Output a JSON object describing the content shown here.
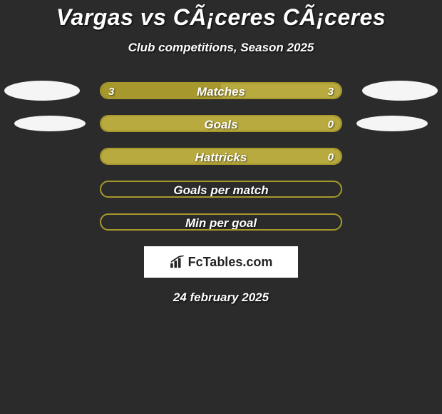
{
  "title": "Vargas vs CÃ¡ceres CÃ¡ceres",
  "title_fontsize": 32,
  "subtitle": "Club competitions, Season 2025",
  "subtitle_fontsize": 17,
  "date": "24 february 2025",
  "date_fontsize": 17,
  "logo_text": "FcTables.com",
  "logo_fontsize": 18,
  "colors": {
    "background": "#2b2b2b",
    "bar_a": "#a6982d",
    "bar_b": "#b8aa3e",
    "bar_outline": "#a6982d",
    "text": "#ffffff",
    "oval": "#f5f5f5",
    "logo_bg": "#ffffff",
    "logo_text": "#222222"
  },
  "stats": [
    {
      "label": "Matches",
      "left_value": "3",
      "right_value": "3",
      "left_pct": 50,
      "right_pct": 50,
      "show_left_oval": "big",
      "show_right_oval": "big"
    },
    {
      "label": "Goals",
      "left_value": "",
      "right_value": "0",
      "left_pct": 0,
      "right_pct": 100,
      "show_left_oval": "small",
      "show_right_oval": "small"
    },
    {
      "label": "Hattricks",
      "left_value": "",
      "right_value": "0",
      "left_pct": 0,
      "right_pct": 100,
      "show_left_oval": "none",
      "show_right_oval": "none"
    },
    {
      "label": "Goals per match",
      "left_value": "",
      "right_value": "",
      "left_pct": 0,
      "right_pct": 0,
      "show_left_oval": "none",
      "show_right_oval": "none"
    },
    {
      "label": "Min per goal",
      "left_value": "",
      "right_value": "",
      "left_pct": 0,
      "right_pct": 0,
      "show_left_oval": "none",
      "show_right_oval": "none"
    }
  ],
  "label_fontsize": 17,
  "value_fontsize": 15
}
